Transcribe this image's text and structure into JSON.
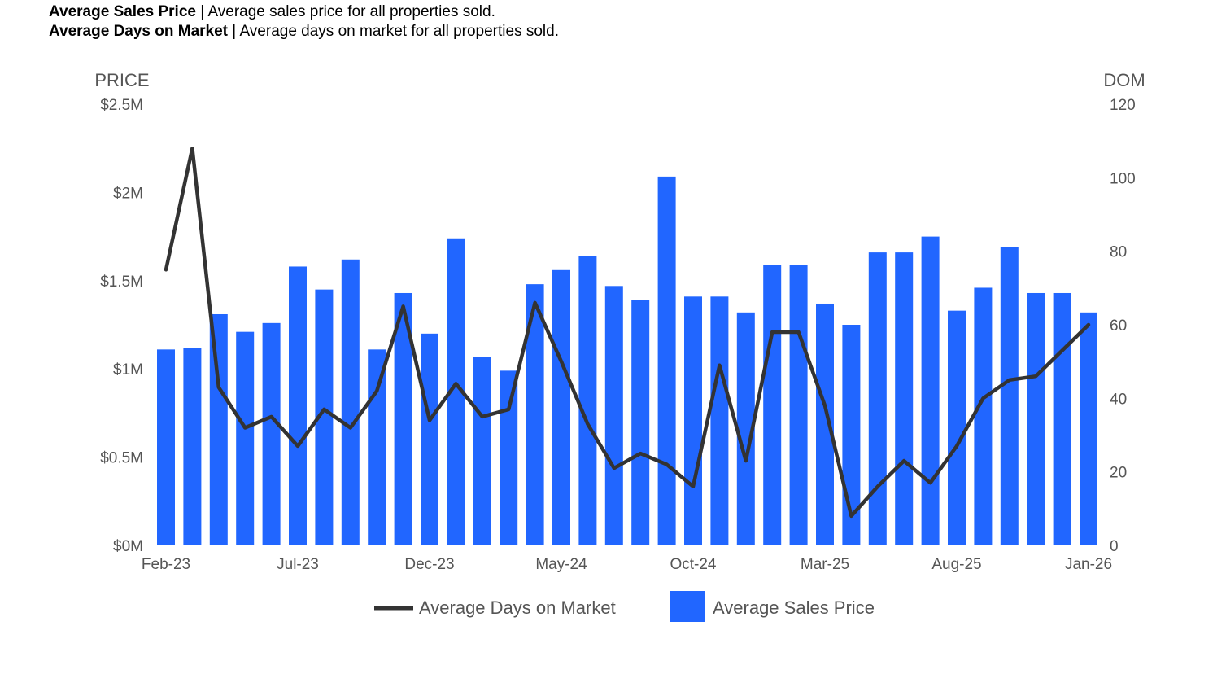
{
  "descriptions": [
    {
      "term": "Average Sales Price",
      "sep": " | ",
      "text": "Average sales price for all properties sold."
    },
    {
      "term": "Average Days on Market",
      "sep": " | ",
      "text": "Average days on market for all properties sold."
    }
  ],
  "chart_data": {
    "type": "bar+line",
    "title": "",
    "left_axis": {
      "title": "PRICE",
      "range": [
        0,
        2.5
      ],
      "ticks": [
        "$0M",
        "$0.5M",
        "$1M",
        "$1.5M",
        "$2M",
        "$2.5M"
      ]
    },
    "right_axis": {
      "title": "DOM",
      "range": [
        0,
        120
      ],
      "ticks": [
        "0",
        "20",
        "40",
        "60",
        "80",
        "100",
        "120"
      ]
    },
    "x_tick_labels": [
      "Feb-23",
      "Jul-23",
      "Dec-23",
      "May-24",
      "Oct-24",
      "Mar-25",
      "Aug-25",
      "Jan-26"
    ],
    "categories": [
      "Feb-23",
      "Mar-23",
      "Apr-23",
      "May-23",
      "Jun-23",
      "Jul-23",
      "Aug-23",
      "Sep-23",
      "Oct-23",
      "Nov-23",
      "Dec-23",
      "Jan-24",
      "Feb-24",
      "Mar-24",
      "Apr-24",
      "May-24",
      "Jun-24",
      "Jul-24",
      "Aug-24",
      "Sep-24",
      "Oct-24",
      "Nov-24",
      "Dec-24",
      "Jan-25",
      "Feb-25",
      "Mar-25",
      "Apr-25",
      "May-25",
      "Jun-25",
      "Jul-25",
      "Aug-25",
      "Sep-25",
      "Oct-25",
      "Nov-25",
      "Dec-25",
      "Jan-26"
    ],
    "series": [
      {
        "name": "Average Sales Price",
        "type": "bar",
        "axis": "left",
        "color": "#2166ff",
        "values": [
          1.11,
          1.12,
          1.31,
          1.21,
          1.26,
          1.58,
          1.45,
          1.62,
          1.11,
          1.43,
          1.2,
          1.74,
          1.07,
          0.99,
          1.48,
          1.56,
          1.64,
          1.47,
          1.39,
          2.09,
          1.41,
          1.41,
          1.32,
          1.59,
          1.59,
          1.37,
          1.25,
          1.66,
          1.66,
          1.75,
          1.33,
          1.46,
          1.69,
          1.43,
          1.43,
          1.32
        ]
      },
      {
        "name": "Average Days on Market",
        "type": "line",
        "axis": "right",
        "color": "#333333",
        "values": [
          75,
          108,
          43,
          32,
          35,
          27,
          37,
          32,
          42,
          65,
          34,
          44,
          35,
          37,
          66,
          50,
          33,
          21,
          25,
          22,
          16,
          49,
          23,
          58,
          58,
          38,
          8,
          16,
          23,
          17,
          27,
          40,
          45,
          46,
          53,
          60
        ]
      }
    ],
    "legend": {
      "position": "bottom",
      "entries": [
        "Average Days on Market",
        "Average Sales Price"
      ]
    },
    "grid": false
  }
}
